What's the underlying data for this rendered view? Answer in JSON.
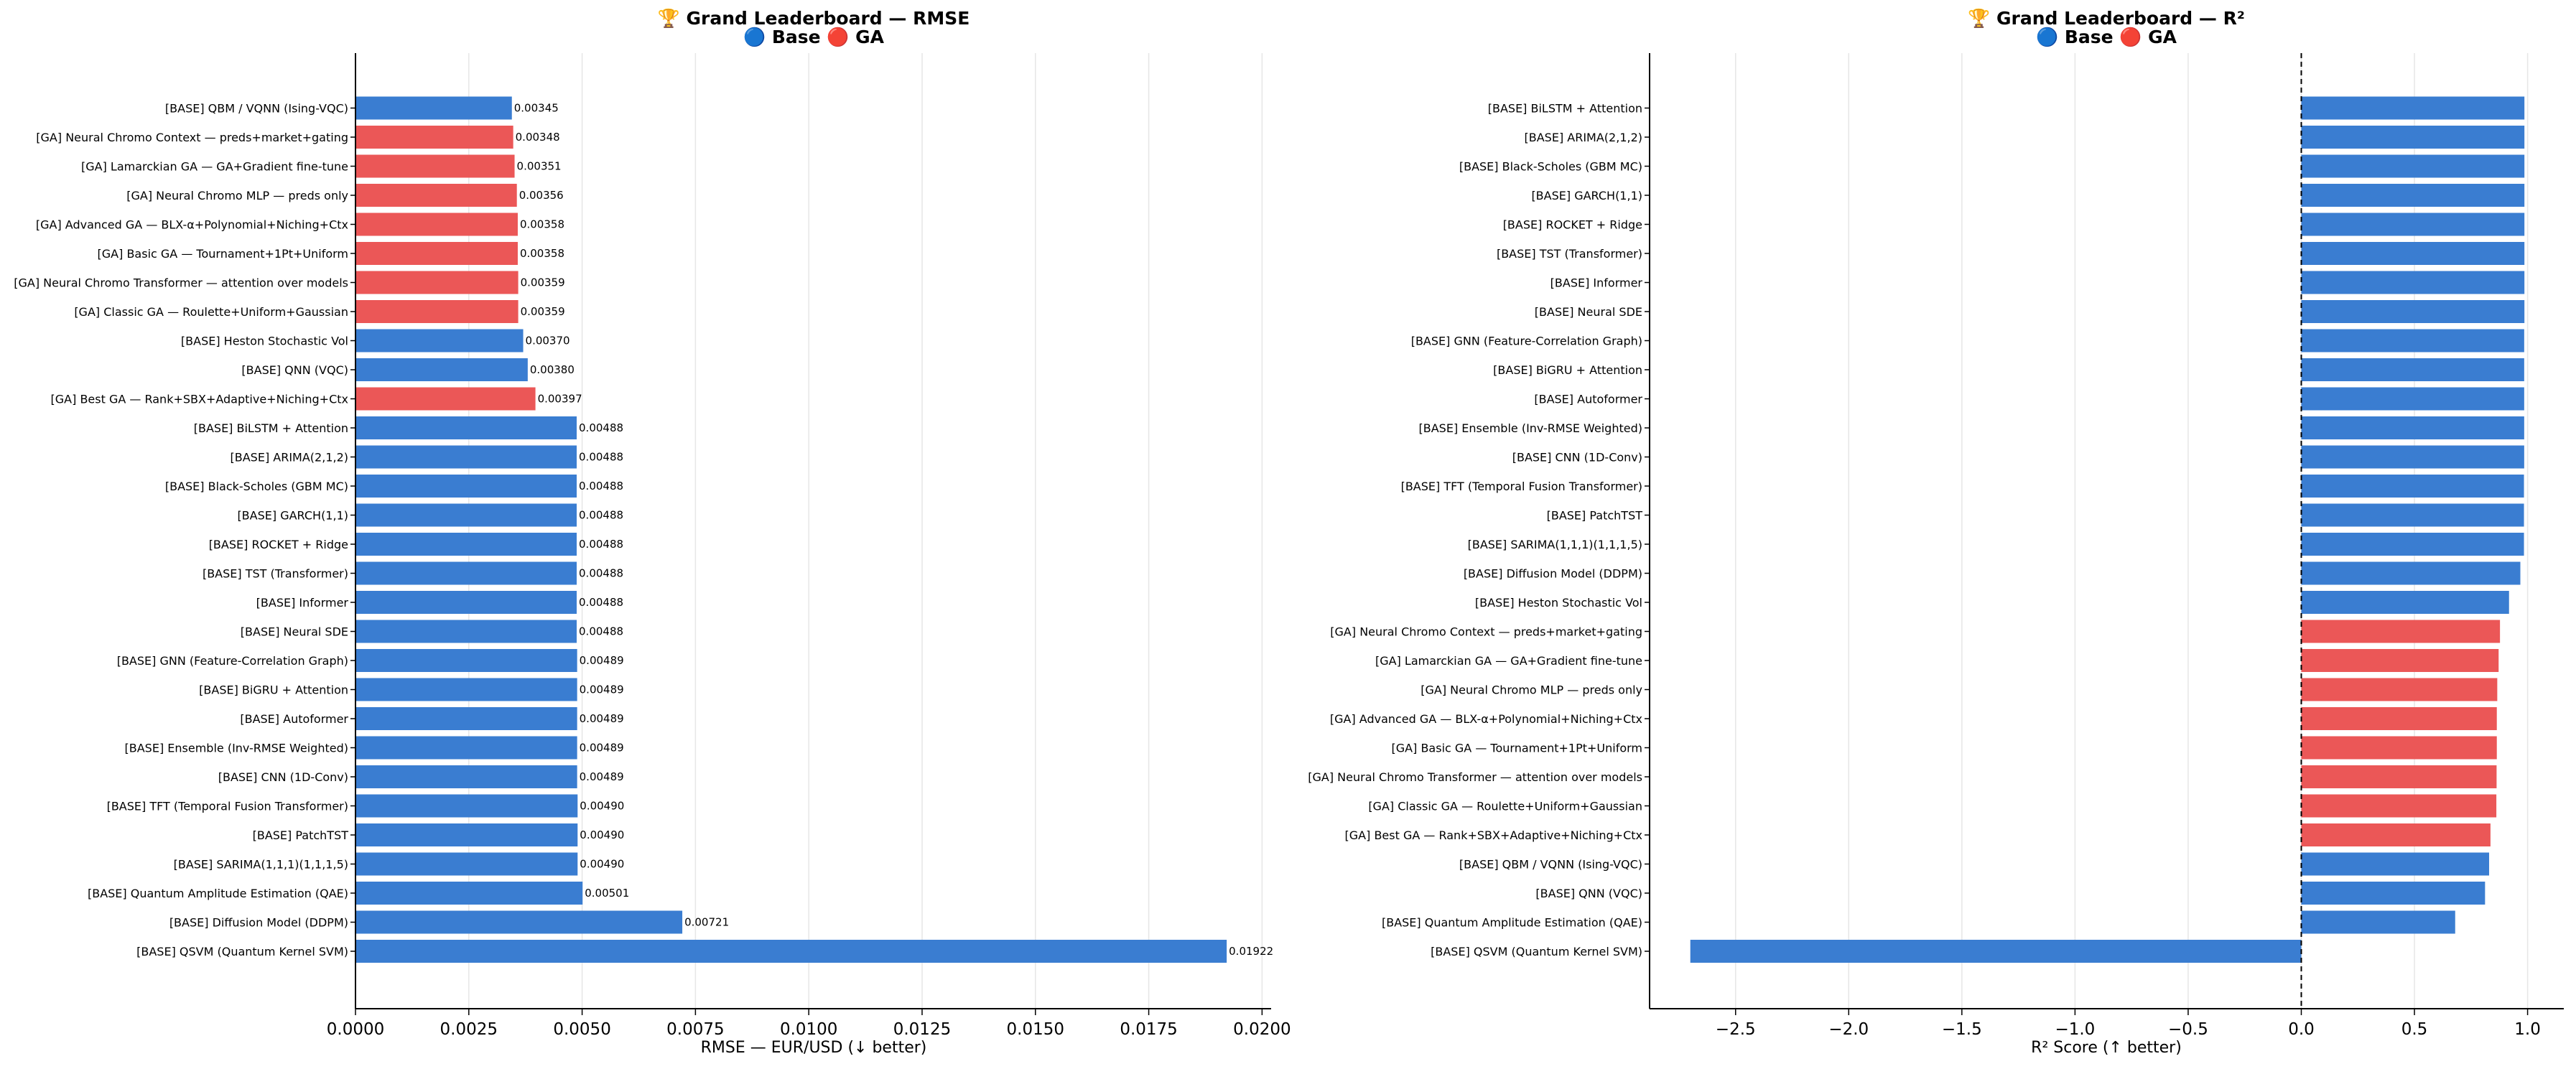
{
  "chart_data": [
    {
      "type": "bar",
      "orientation": "horizontal",
      "title": "🏆 Grand Leaderboard — RMSE",
      "subtitle": "🔵 Base  🔴 GA",
      "xlabel": "RMSE — EUR/USD (↓ better)",
      "ylabel": "",
      "xlim": [
        0.0,
        0.0202
      ],
      "xticks": [
        "0.0000",
        "0.0025",
        "0.0050",
        "0.0075",
        "0.0100",
        "0.0125",
        "0.0150",
        "0.0175",
        "0.0200"
      ],
      "grid": "vertical",
      "categories": [
        "[BASE] QBM / VQNN (Ising-VQC)",
        "[GA]   Neural Chromo Context — preds+market+gating",
        "[GA]   Lamarckian GA — GA+Gradient fine-tune",
        "[GA]   Neural Chromo MLP — preds only",
        "[GA]   Advanced GA — BLX-α+Polynomial+Niching+Ctx",
        "[GA]   Basic GA — Tournament+1Pt+Uniform",
        "[GA]   Neural Chromo Transformer — attention over models",
        "[GA]   Classic GA — Roulette+Uniform+Gaussian",
        "[BASE] Heston Stochastic Vol",
        "[BASE] QNN (VQC)",
        "[GA]   Best GA — Rank+SBX+Adaptive+Niching+Ctx",
        "[BASE] BiLSTM + Attention",
        "[BASE] ARIMA(2,1,2)",
        "[BASE] Black-Scholes (GBM MC)",
        "[BASE] GARCH(1,1)",
        "[BASE] ROCKET + Ridge",
        "[BASE] TST (Transformer)",
        "[BASE] Informer",
        "[BASE] Neural SDE",
        "[BASE] GNN (Feature-Correlation Graph)",
        "[BASE] BiGRU + Attention",
        "[BASE] Autoformer",
        "[BASE] Ensemble (Inv-RMSE Weighted)",
        "[BASE] CNN (1D-Conv)",
        "[BASE] TFT (Temporal Fusion Transformer)",
        "[BASE] PatchTST",
        "[BASE] SARIMA(1,1,1)(1,1,1,5)",
        "[BASE] Quantum Amplitude Estimation (QAE)",
        "[BASE] Diffusion Model (DDPM)",
        "[BASE] QSVM (Quantum Kernel SVM)"
      ],
      "values": [
        0.00345,
        0.00348,
        0.00351,
        0.00356,
        0.00358,
        0.00358,
        0.00359,
        0.00359,
        0.0037,
        0.0038,
        0.00397,
        0.00488,
        0.00488,
        0.00488,
        0.00488,
        0.00488,
        0.00488,
        0.00488,
        0.00488,
        0.00489,
        0.00489,
        0.00489,
        0.00489,
        0.00489,
        0.0049,
        0.0049,
        0.0049,
        0.00501,
        0.00721,
        0.01922
      ],
      "value_labels": [
        "0.00345",
        "0.00348",
        "0.00351",
        "0.00356",
        "0.00358",
        "0.00358",
        "0.00359",
        "0.00359",
        "0.00370",
        "0.00380",
        "0.00397",
        "0.00488",
        "0.00488",
        "0.00488",
        "0.00488",
        "0.00488",
        "0.00488",
        "0.00488",
        "0.00488",
        "0.00489",
        "0.00489",
        "0.00489",
        "0.00489",
        "0.00489",
        "0.00490",
        "0.00490",
        "0.00490",
        "0.00501",
        "0.00721",
        "0.01922"
      ],
      "groups": [
        "base",
        "ga",
        "ga",
        "ga",
        "ga",
        "ga",
        "ga",
        "ga",
        "base",
        "base",
        "ga",
        "base",
        "base",
        "base",
        "base",
        "base",
        "base",
        "base",
        "base",
        "base",
        "base",
        "base",
        "base",
        "base",
        "base",
        "base",
        "base",
        "base",
        "base",
        "base"
      ]
    },
    {
      "type": "bar",
      "orientation": "horizontal",
      "title": "🏆 Grand Leaderboard — R²",
      "subtitle": "🔵 Base  🔴 GA",
      "xlabel": "R² Score (↑ better)",
      "ylabel": "",
      "xlim": [
        -2.88,
        1.16
      ],
      "xticks": [
        "−2.5",
        "−2.0",
        "−1.5",
        "−1.0",
        "−0.5",
        "0.0",
        "0.5",
        "1.0"
      ],
      "reference_line": 0.0,
      "grid": "vertical",
      "categories": [
        "[BASE] BiLSTM + Attention",
        "[BASE] ARIMA(2,1,2)",
        "[BASE] Black-Scholes (GBM MC)",
        "[BASE] GARCH(1,1)",
        "[BASE] ROCKET + Ridge",
        "[BASE] TST (Transformer)",
        "[BASE] Informer",
        "[BASE] Neural SDE",
        "[BASE] GNN (Feature-Correlation Graph)",
        "[BASE] BiGRU + Attention",
        "[BASE] Autoformer",
        "[BASE] Ensemble (Inv-RMSE Weighted)",
        "[BASE] CNN (1D-Conv)",
        "[BASE] TFT (Temporal Fusion Transformer)",
        "[BASE] PatchTST",
        "[BASE] SARIMA(1,1,1)(1,1,1,5)",
        "[BASE] Diffusion Model (DDPM)",
        "[BASE] Heston Stochastic Vol",
        "[GA]   Neural Chromo Context — preds+market+gating",
        "[GA]   Lamarckian GA — GA+Gradient fine-tune",
        "[GA]   Neural Chromo MLP — preds only",
        "[GA]   Advanced GA — BLX-α+Polynomial+Niching+Ctx",
        "[GA]   Basic GA — Tournament+1Pt+Uniform",
        "[GA]   Neural Chromo Transformer — attention over models",
        "[GA]   Classic GA — Roulette+Uniform+Gaussian",
        "[GA]   Best GA — Rank+SBX+Adaptive+Niching+Ctx",
        "[BASE] QBM / VQNN (Ising-VQC)",
        "[BASE] QNN (VQC)",
        "[BASE] Quantum Amplitude Estimation (QAE)",
        "[BASE] QSVM (Quantum Kernel SVM)"
      ],
      "values": [
        0.986,
        0.986,
        0.986,
        0.986,
        0.986,
        0.986,
        0.986,
        0.986,
        0.985,
        0.985,
        0.985,
        0.985,
        0.985,
        0.984,
        0.984,
        0.984,
        0.968,
        0.918,
        0.878,
        0.872,
        0.866,
        0.864,
        0.864,
        0.863,
        0.862,
        0.836,
        0.83,
        0.812,
        0.68,
        -2.7
      ],
      "groups": [
        "base",
        "base",
        "base",
        "base",
        "base",
        "base",
        "base",
        "base",
        "base",
        "base",
        "base",
        "base",
        "base",
        "base",
        "base",
        "base",
        "base",
        "base",
        "ga",
        "ga",
        "ga",
        "ga",
        "ga",
        "ga",
        "ga",
        "ga",
        "base",
        "base",
        "base",
        "base"
      ]
    }
  ],
  "colors": {
    "base": "#3a7dd1",
    "ga": "#eb5757",
    "grid": "#e6e6e6",
    "axis": "#000000"
  }
}
